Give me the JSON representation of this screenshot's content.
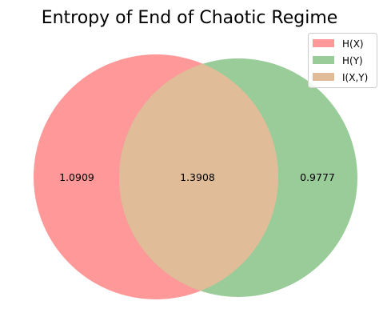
{
  "chart_data": {
    "type": "venn",
    "title": "Entropy of End of Chaotic Regime",
    "sets": [
      {
        "key": "x",
        "name": "H(X)",
        "color": "#ff9999"
      },
      {
        "key": "y",
        "name": "H(Y)",
        "color": "#99cc99"
      }
    ],
    "intersection": {
      "name": "I(X,Y)",
      "color": "#e0bd98"
    },
    "regions": {
      "x_only": "1.0909",
      "intersection": "1.3908",
      "y_only": "0.9777"
    },
    "legend_position": "top-right"
  }
}
